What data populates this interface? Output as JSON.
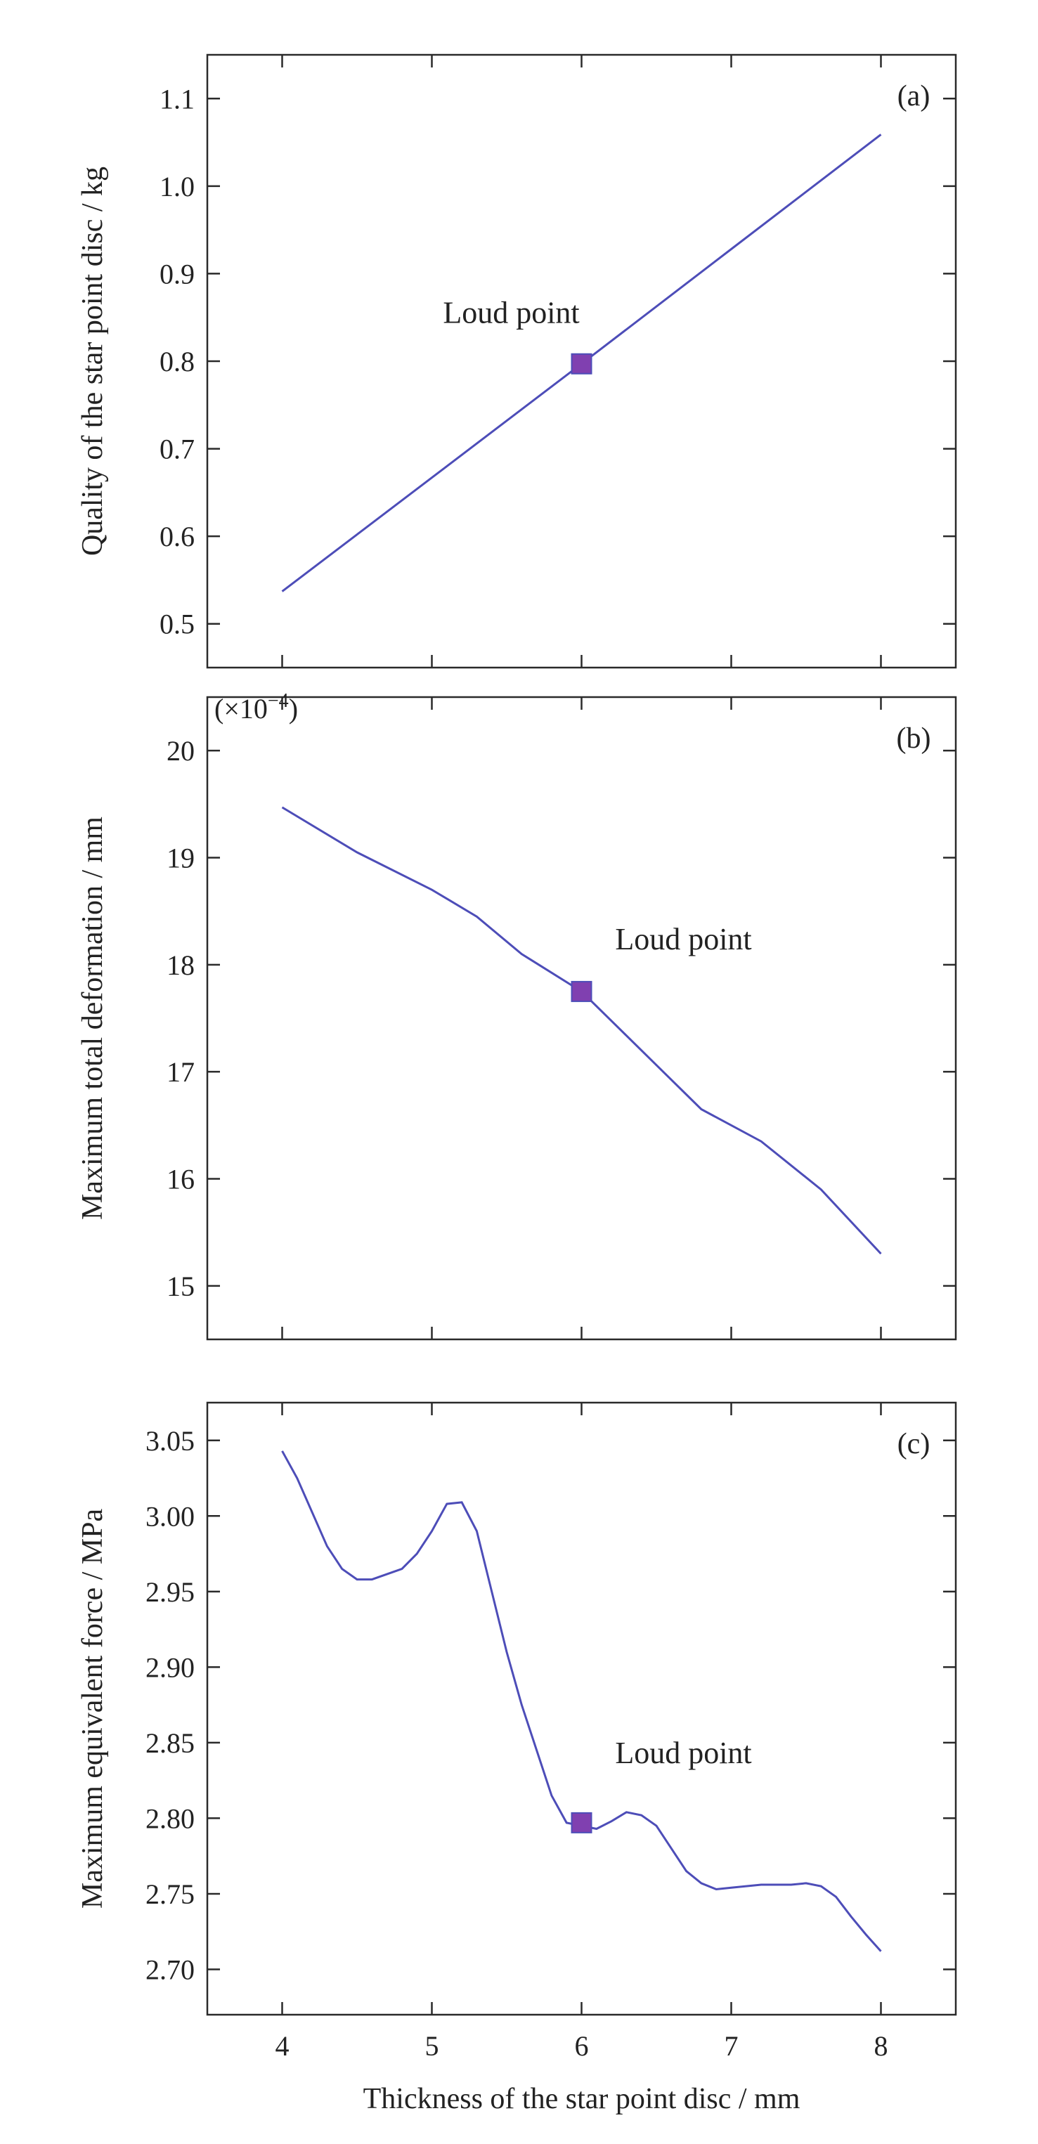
{
  "chart_data": [
    {
      "type": "line",
      "panel_label": "(a)",
      "xlabel": "",
      "ylabel": "Quality of the star point disc / kg",
      "ylim": [
        0.45,
        1.15
      ],
      "xlim": [
        3.5,
        8.5
      ],
      "yticks": [
        "0.5",
        "0.6",
        "0.7",
        "0.8",
        "0.9",
        "1.0",
        "1.1"
      ],
      "xticks": [
        4,
        5,
        6,
        7,
        8
      ],
      "ytick_values": [
        0.5,
        0.6,
        0.7,
        0.8,
        0.9,
        1.0,
        1.1
      ],
      "multiplier": "",
      "series": [
        {
          "x": [
            4,
            5,
            6,
            7,
            8
          ],
          "values": [
            0.537,
            0.667,
            0.797,
            0.928,
            1.059
          ]
        }
      ],
      "annotation": {
        "text": "Loud point",
        "x": 6,
        "y": 0.797
      },
      "line_color": "#4d4db8",
      "marker_color": "#8040b0"
    },
    {
      "type": "line",
      "panel_label": "(b)",
      "xlabel": "",
      "ylabel": "Maximum total deformation / mm",
      "ylim": [
        14.5,
        20.5
      ],
      "xlim": [
        3.5,
        8.5
      ],
      "yticks": [
        "15",
        "16",
        "17",
        "18",
        "19",
        "20"
      ],
      "xticks": [
        4,
        5,
        6,
        7,
        8
      ],
      "ytick_values": [
        15,
        16,
        17,
        18,
        19,
        20
      ],
      "multiplier": "(×10",
      "multiplier_exp": "−4",
      "multiplier_close": ")",
      "series": [
        {
          "x": [
            4,
            4.5,
            5,
            5.3,
            5.6,
            6,
            6.4,
            6.8,
            7.2,
            7.6,
            8
          ],
          "values": [
            19.47,
            19.05,
            18.7,
            18.45,
            18.1,
            17.75,
            17.2,
            16.65,
            16.35,
            15.9,
            15.3
          ]
        }
      ],
      "annotation": {
        "text": "Loud point",
        "x": 6,
        "y": 17.75
      },
      "line_color": "#4d4db8",
      "marker_color": "#8040b0"
    },
    {
      "type": "line",
      "panel_label": "(c)",
      "xlabel": "Thickness of the star point disc / mm",
      "ylabel": "Maximum equivalent force / MPa",
      "ylim": [
        2.67,
        3.075
      ],
      "xlim": [
        3.5,
        8.5
      ],
      "yticks": [
        "2.70",
        "2.75",
        "2.80",
        "2.85",
        "2.90",
        "2.95",
        "3.00",
        "3.05"
      ],
      "xticks": [
        "4",
        "5",
        "6",
        "7",
        "8"
      ],
      "ytick_values": [
        2.7,
        2.75,
        2.8,
        2.85,
        2.9,
        2.95,
        3.0,
        3.05
      ],
      "multiplier": "",
      "series": [
        {
          "x": [
            4,
            4.1,
            4.3,
            4.4,
            4.5,
            4.6,
            4.8,
            4.9,
            5.0,
            5.1,
            5.2,
            5.3,
            5.4,
            5.5,
            5.6,
            5.7,
            5.8,
            5.9,
            6.0,
            6.1,
            6.2,
            6.3,
            6.4,
            6.5,
            6.6,
            6.7,
            6.8,
            6.9,
            7.0,
            7.2,
            7.4,
            7.5,
            7.6,
            7.7,
            7.8,
            7.9,
            8.0
          ],
          "values": [
            3.043,
            3.025,
            2.98,
            2.965,
            2.958,
            2.958,
            2.965,
            2.975,
            2.99,
            3.008,
            3.009,
            2.99,
            2.95,
            2.91,
            2.875,
            2.845,
            2.815,
            2.797,
            2.795,
            2.793,
            2.798,
            2.804,
            2.802,
            2.795,
            2.78,
            2.765,
            2.757,
            2.753,
            2.754,
            2.756,
            2.756,
            2.757,
            2.755,
            2.748,
            2.735,
            2.723,
            2.712
          ]
        }
      ],
      "annotation": {
        "text": "Loud point",
        "x": 6,
        "y": 2.797
      },
      "line_color": "#4d4db8",
      "marker_color": "#8040b0"
    }
  ]
}
